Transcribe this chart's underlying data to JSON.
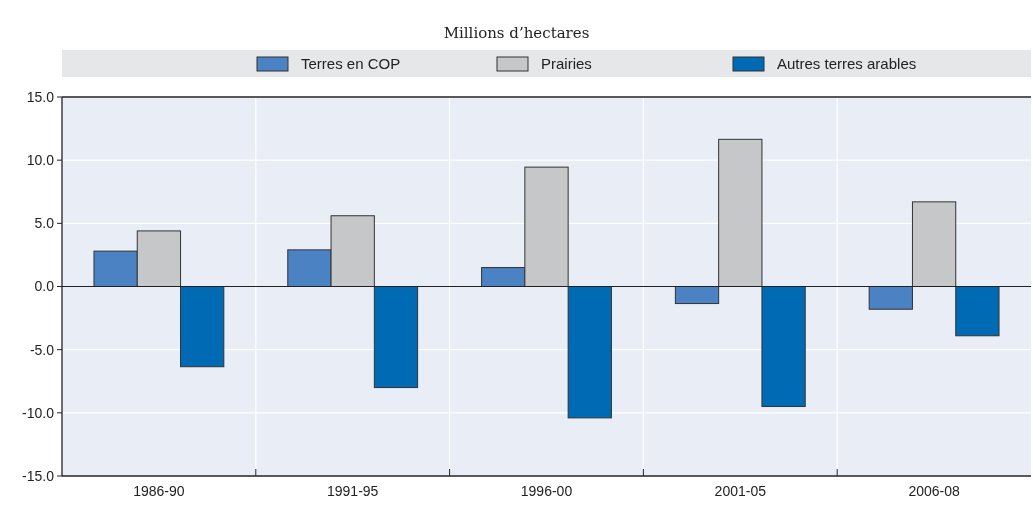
{
  "chart_data": {
    "type": "bar",
    "subtitle": "Millions d’hectares",
    "categories": [
      "1986-90",
      "1991-95",
      "1996-00",
      "2001-05",
      "2006-08"
    ],
    "series": [
      {
        "name": "Terres en COP",
        "color": "#4a82c3",
        "values": [
          2.8,
          2.9,
          1.5,
          -1.35,
          -1.8
        ]
      },
      {
        "name": "Prairies",
        "color": "#c6c7c9",
        "values": [
          4.4,
          5.6,
          9.45,
          11.65,
          6.7
        ]
      },
      {
        "name": "Autres terres arables",
        "color": "#006ab4",
        "values": [
          -6.35,
          -8.0,
          -10.4,
          -9.5,
          -3.9
        ]
      }
    ],
    "ylim": [
      -15,
      15
    ],
    "yticks": [
      {
        "value": -15,
        "label": "-15.0"
      },
      {
        "value": -10,
        "label": "-10.0"
      },
      {
        "value": -5,
        "label": "-5.0"
      },
      {
        "value": 0,
        "label": "0.0"
      },
      {
        "value": 5,
        "label": "5.0"
      },
      {
        "value": 10,
        "label": "10.0"
      },
      {
        "value": 15,
        "label": "15.0"
      }
    ],
    "grid": true,
    "legend": "top"
  }
}
